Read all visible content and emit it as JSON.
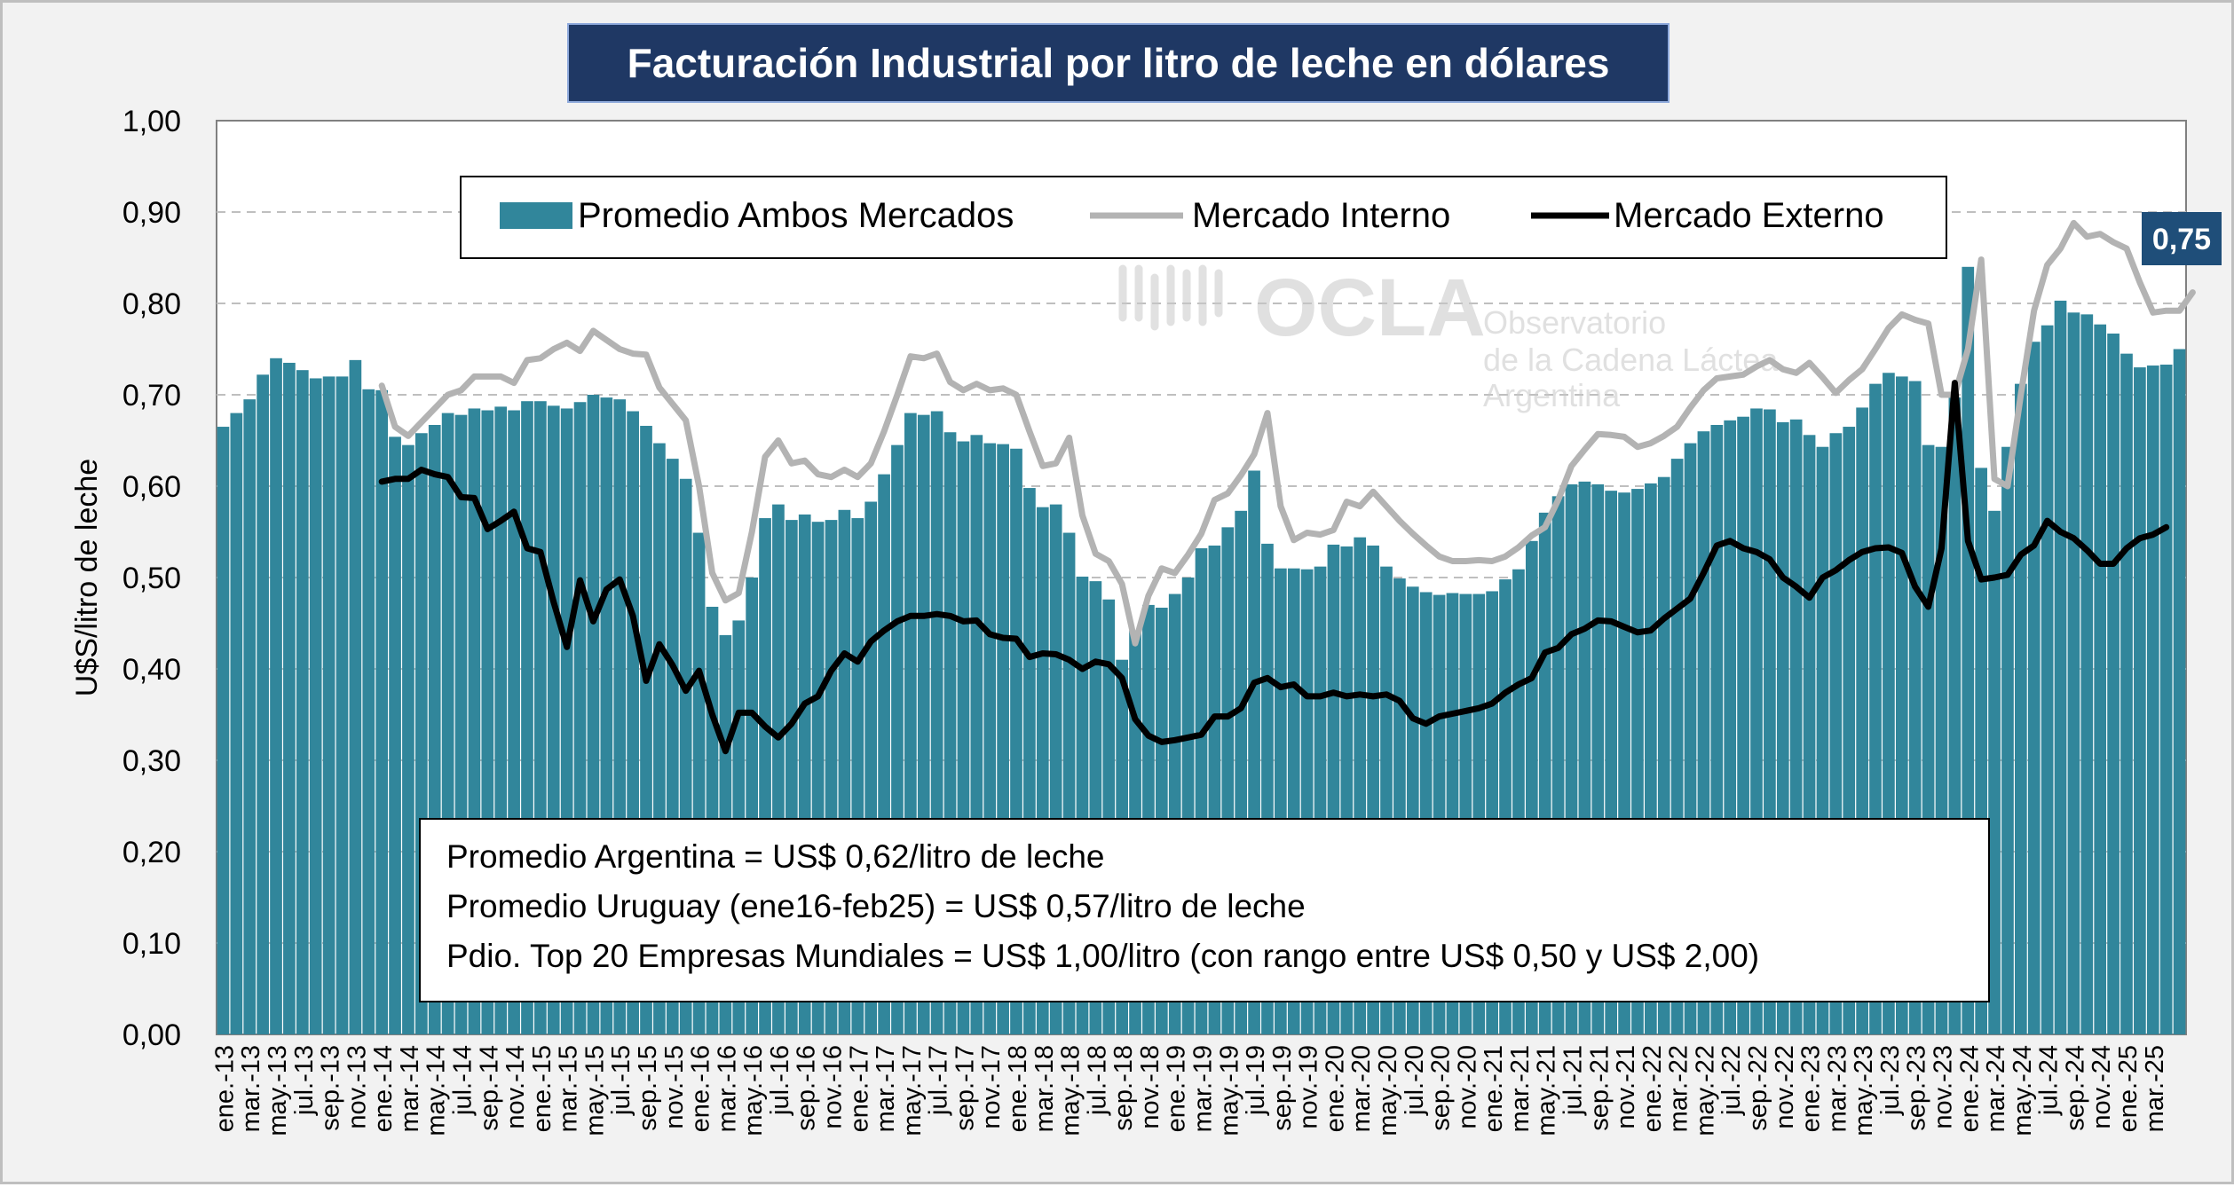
{
  "chart_data": {
    "type": "bar+line",
    "title": "Facturación Industrial por litro de leche en dólares",
    "ylabel": "U$S/litro de leche",
    "xlabel": "",
    "ylim": [
      0,
      1
    ],
    "yticks": [
      "0,00",
      "0,10",
      "0,20",
      "0,30",
      "0,40",
      "0,50",
      "0,60",
      "0,70",
      "0,80",
      "0,90",
      "1,00"
    ],
    "grid": "horizontal dashed",
    "legend_position": "top-center",
    "xtick_labels": [
      "ene.-13",
      "mar.-13",
      "may.-13",
      "jul.-13",
      "sep.-13",
      "nov.-13",
      "ene.-14",
      "mar.-14",
      "may.-14",
      "jul.-14",
      "sep.-14",
      "nov.-14",
      "ene.-15",
      "mar.-15",
      "may.-15",
      "jul.-15",
      "sep.-15",
      "nov.-15",
      "ene.-16",
      "mar.-16",
      "may.-16",
      "jul.-16",
      "sep.-16",
      "nov.-16",
      "ene.-17",
      "mar.-17",
      "may.-17",
      "jul.-17",
      "sep.-17",
      "nov.-17",
      "ene.-18",
      "mar.-18",
      "may.-18",
      "jul.-18",
      "sep.-18",
      "nov.-18",
      "ene.-19",
      "mar.-19",
      "may.-19",
      "jul.-19",
      "sep.-19",
      "nov.-19",
      "ene.-20",
      "mar.-20",
      "may.-20",
      "jul.-20",
      "sep.-20",
      "nov.-20",
      "ene.-21",
      "mar.-21",
      "may.-21",
      "jul.-21",
      "sep.-21",
      "nov.-21",
      "ene.-22",
      "mar.-22",
      "may.-22",
      "jul.-22",
      "sep.-22",
      "nov.-22",
      "ene.-23",
      "mar.-23",
      "may.-23",
      "jul.-23",
      "sep.-23",
      "nov.-23",
      "ene.-24",
      "mar.-24",
      "may.-24",
      "jul.-24",
      "sep.-24",
      "nov.-24",
      "ene.-25",
      "mar.-25"
    ],
    "series": [
      {
        "name": "Promedio Ambos Mercados",
        "type": "bar",
        "color": "#31869b",
        "values": [
          0.665,
          0.68,
          0.695,
          0.722,
          0.74,
          0.735,
          0.727,
          0.718,
          0.72,
          0.72,
          0.738,
          0.706,
          0.705,
          0.654,
          0.645,
          0.658,
          0.667,
          0.68,
          0.678,
          0.685,
          0.683,
          0.687,
          0.683,
          0.693,
          0.693,
          0.688,
          0.685,
          0.692,
          0.7,
          0.697,
          0.695,
          0.682,
          0.666,
          0.647,
          0.63,
          0.608,
          0.549,
          0.468,
          0.437,
          0.453,
          0.5,
          0.565,
          0.58,
          0.563,
          0.569,
          0.561,
          0.563,
          0.574,
          0.565,
          0.583,
          0.613,
          0.645,
          0.68,
          0.678,
          0.682,
          0.659,
          0.649,
          0.656,
          0.647,
          0.646,
          0.641,
          0.598,
          0.577,
          0.58,
          0.549,
          0.501,
          0.496,
          0.476,
          0.41,
          0.442,
          0.47,
          0.467,
          0.482,
          0.5,
          0.532,
          0.535,
          0.555,
          0.573,
          0.617,
          0.537,
          0.51,
          0.51,
          0.509,
          0.512,
          0.536,
          0.534,
          0.544,
          0.535,
          0.512,
          0.499,
          0.49,
          0.484,
          0.481,
          0.483,
          0.482,
          0.482,
          0.485,
          0.498,
          0.509,
          0.54,
          0.571,
          0.589,
          0.602,
          0.605,
          0.602,
          0.595,
          0.593,
          0.597,
          0.603,
          0.61,
          0.63,
          0.647,
          0.66,
          0.667,
          0.672,
          0.676,
          0.685,
          0.684,
          0.67,
          0.673,
          0.656,
          0.643,
          0.658,
          0.665,
          0.686,
          0.712,
          0.724,
          0.72,
          0.715,
          0.645,
          0.643,
          0.697,
          0.84,
          0.62,
          0.573,
          0.643,
          0.712,
          0.758,
          0.776,
          0.803,
          0.79,
          0.788,
          0.777,
          0.767,
          0.745,
          0.73,
          0.732,
          0.733,
          0.75
        ]
      },
      {
        "name": "Mercado Interno",
        "type": "line",
        "color": "#b3b3b3",
        "start_index": 12,
        "values": [
          0.71,
          0.665,
          0.655,
          0.67,
          0.685,
          0.7,
          0.705,
          0.72,
          0.72,
          0.72,
          0.713,
          0.738,
          0.74,
          0.75,
          0.757,
          0.748,
          0.77,
          0.76,
          0.75,
          0.745,
          0.744,
          0.708,
          0.69,
          0.672,
          0.6,
          0.505,
          0.475,
          0.483,
          0.55,
          0.632,
          0.65,
          0.625,
          0.628,
          0.613,
          0.61,
          0.618,
          0.61,
          0.625,
          0.66,
          0.7,
          0.742,
          0.74,
          0.745,
          0.714,
          0.705,
          0.712,
          0.705,
          0.707,
          0.7,
          0.66,
          0.622,
          0.625,
          0.653,
          0.568,
          0.526,
          0.518,
          0.493,
          0.428,
          0.48,
          0.51,
          0.505,
          0.525,
          0.548,
          0.585,
          0.592,
          0.612,
          0.635,
          0.68,
          0.578,
          0.541,
          0.549,
          0.547,
          0.552,
          0.583,
          0.578,
          0.594,
          0.578,
          0.562,
          0.548,
          0.535,
          0.523,
          0.518,
          0.518,
          0.519,
          0.518,
          0.523,
          0.533,
          0.546,
          0.555,
          0.585,
          0.622,
          0.64,
          0.657,
          0.656,
          0.654,
          0.643,
          0.647,
          0.655,
          0.665,
          0.686,
          0.705,
          0.718,
          0.72,
          0.722,
          0.731,
          0.738,
          0.728,
          0.724,
          0.735,
          0.719,
          0.702,
          0.716,
          0.728,
          0.75,
          0.773,
          0.788,
          0.782,
          0.778,
          0.7,
          0.7,
          0.75,
          0.848,
          0.608,
          0.6,
          0.7,
          0.792,
          0.842,
          0.86,
          0.888,
          0.873,
          0.876,
          0.867,
          0.86,
          0.823,
          0.79,
          0.792,
          0.792,
          0.812
        ]
      },
      {
        "name": "Mercado Externo",
        "type": "line",
        "color": "#000000",
        "start_index": 12,
        "values": [
          0.605,
          0.608,
          0.608,
          0.618,
          0.613,
          0.61,
          0.588,
          0.587,
          0.553,
          0.562,
          0.572,
          0.532,
          0.528,
          0.473,
          0.424,
          0.497,
          0.452,
          0.487,
          0.498,
          0.458,
          0.387,
          0.427,
          0.404,
          0.376,
          0.398,
          0.35,
          0.31,
          0.352,
          0.352,
          0.337,
          0.325,
          0.34,
          0.362,
          0.37,
          0.398,
          0.417,
          0.408,
          0.43,
          0.442,
          0.452,
          0.458,
          0.458,
          0.46,
          0.458,
          0.452,
          0.453,
          0.438,
          0.434,
          0.433,
          0.413,
          0.417,
          0.416,
          0.41,
          0.4,
          0.408,
          0.405,
          0.39,
          0.345,
          0.327,
          0.32,
          0.322,
          0.325,
          0.328,
          0.348,
          0.348,
          0.357,
          0.385,
          0.39,
          0.38,
          0.383,
          0.37,
          0.37,
          0.374,
          0.37,
          0.372,
          0.37,
          0.372,
          0.365,
          0.346,
          0.34,
          0.348,
          0.351,
          0.354,
          0.357,
          0.362,
          0.374,
          0.383,
          0.39,
          0.418,
          0.423,
          0.438,
          0.444,
          0.453,
          0.452,
          0.446,
          0.44,
          0.442,
          0.455,
          0.466,
          0.477,
          0.505,
          0.535,
          0.54,
          0.532,
          0.528,
          0.52,
          0.5,
          0.49,
          0.478,
          0.5,
          0.508,
          0.519,
          0.528,
          0.532,
          0.533,
          0.527,
          0.49,
          0.468,
          0.532,
          0.713,
          0.54,
          0.498,
          0.5,
          0.503,
          0.525,
          0.535,
          0.562,
          0.55,
          0.543,
          0.53,
          0.515,
          0.515,
          0.532,
          0.543,
          0.547,
          0.555
        ]
      }
    ],
    "last_value_label": "0,75",
    "annotations": [
      "Promedio Argentina = US$ 0,62/litro de leche",
      "Promedio Uruguay (ene16-feb25) = US$ 0,57/litro de leche",
      "Pdio. Top 20 Empresas Mundiales = US$ 1,00/litro (con rango entre US$ 0,50 y US$ 2,00)"
    ],
    "watermark": {
      "logo_text": "OCLA",
      "line1": "Observatorio",
      "line2": "de la Cadena Láctea",
      "line3": "Argentina"
    }
  }
}
